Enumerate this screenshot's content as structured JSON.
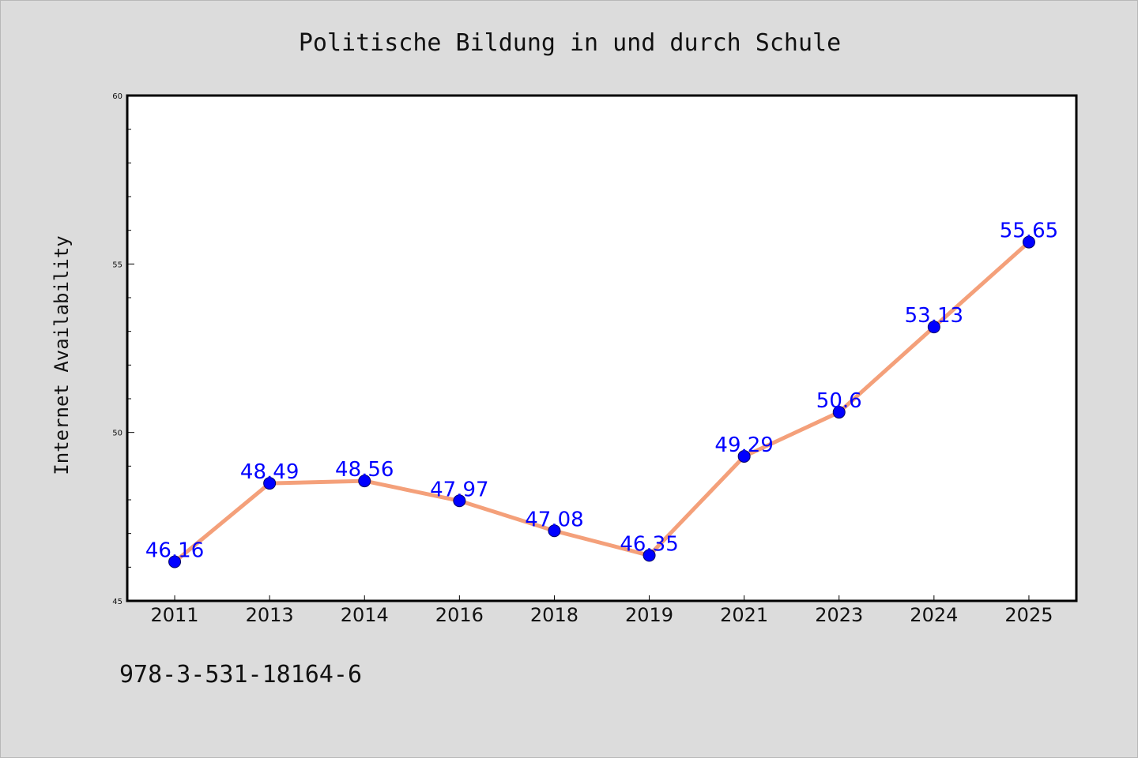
{
  "chart_data": {
    "type": "line",
    "title": "Politische Bildung in und durch Schule",
    "xlabel": "",
    "ylabel": "Internet Availability",
    "categories": [
      "2011",
      "2013",
      "2014",
      "2016",
      "2018",
      "2019",
      "2021",
      "2023",
      "2024",
      "2025"
    ],
    "series": [
      {
        "values": [
          46.16,
          48.49,
          48.56,
          47.97,
          47.08,
          46.35,
          49.29,
          50.6,
          53.13,
          55.65
        ],
        "labels": [
          "46.16",
          "48.49",
          "48.56",
          "47.97",
          "47.08",
          "46.35",
          "49.29",
          "50.6",
          "53.13",
          "55.65"
        ]
      }
    ],
    "ylim": [
      45,
      60
    ],
    "yticks": [
      "45",
      "50",
      "55",
      "60"
    ],
    "grid": false,
    "line_color": "#f4a07a",
    "marker_color": "#0000ff",
    "label_color": "#0000ff"
  },
  "footnote": "978-3-531-18164-6"
}
